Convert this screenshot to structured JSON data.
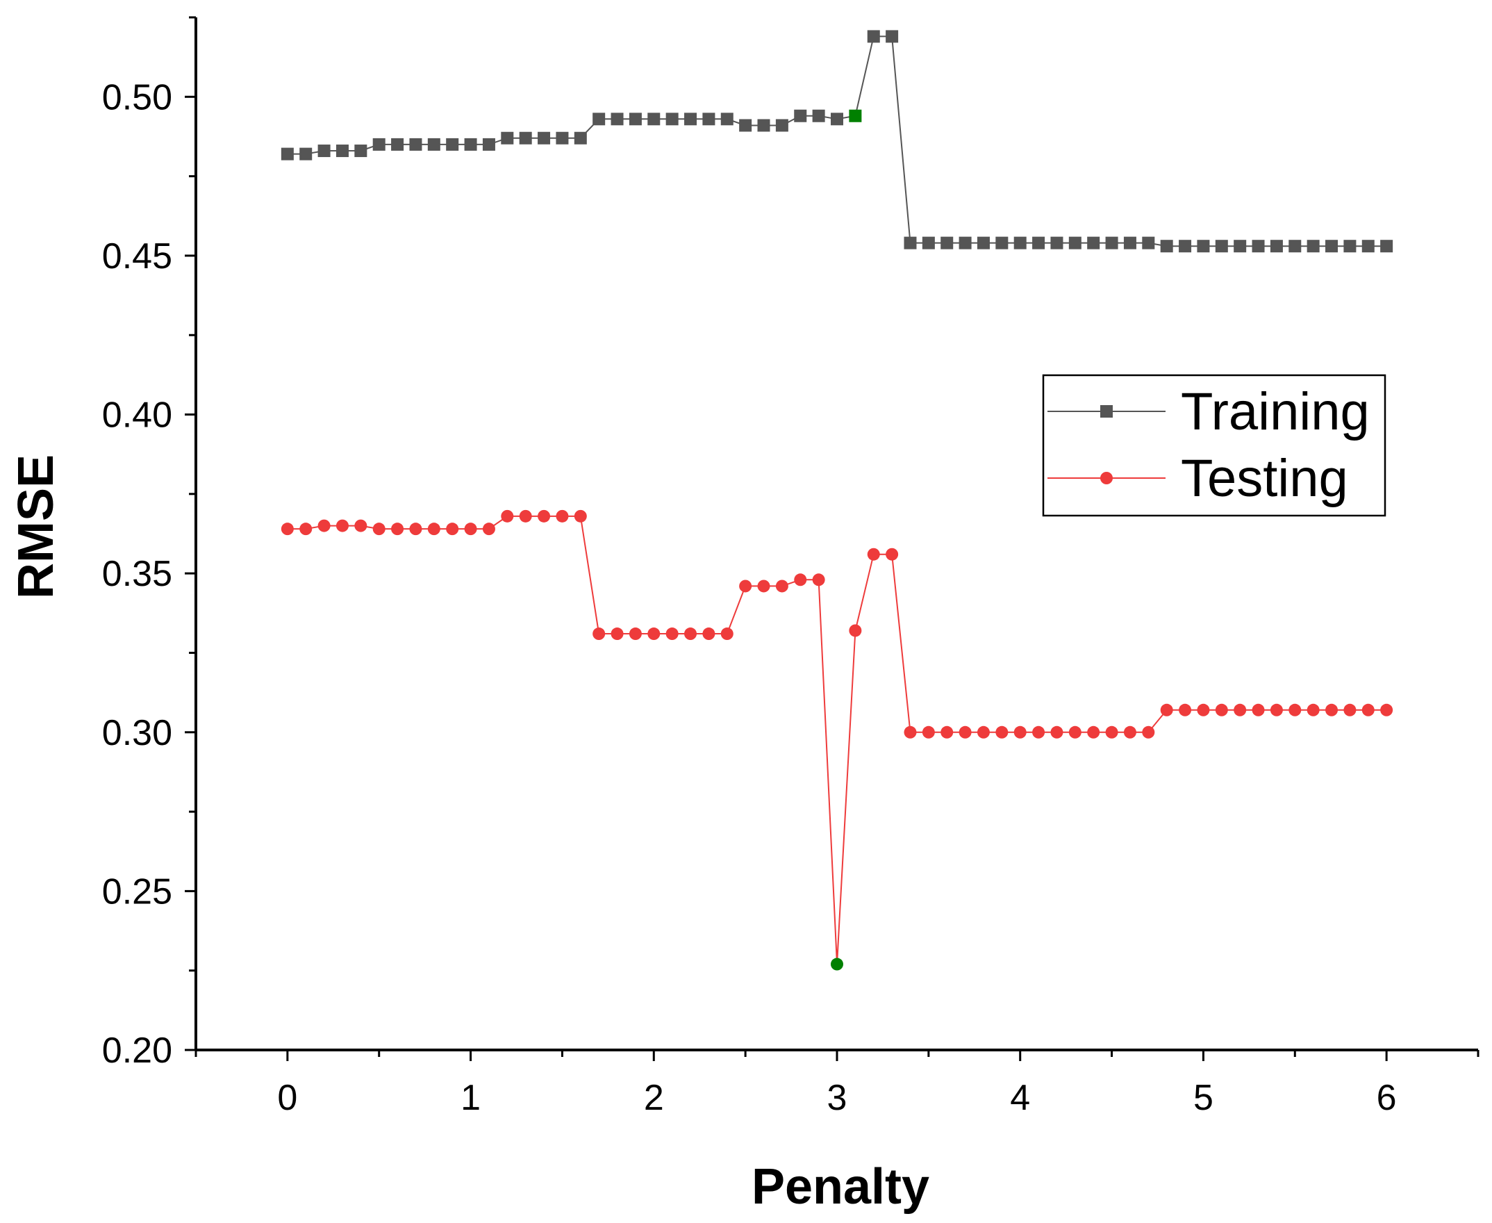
{
  "chart_data": {
    "type": "line",
    "title": "",
    "xlabel": "Penalty",
    "ylabel": "RMSE",
    "xlim": [
      -0.5,
      6.5
    ],
    "ylim": [
      0.2,
      0.525
    ],
    "xticks": [
      "0",
      "1",
      "2",
      "3",
      "4",
      "5",
      "6"
    ],
    "yticks": [
      "0.20",
      "0.25",
      "0.30",
      "0.35",
      "0.40",
      "0.45",
      "0.50"
    ],
    "legend_position": "right-middle",
    "grid": false,
    "series": [
      {
        "name": "Training",
        "color": "#555555",
        "marker": "square",
        "x": [
          0,
          0.1,
          0.2,
          0.3,
          0.4,
          0.5,
          0.6,
          0.7,
          0.8,
          0.9,
          1.0,
          1.1,
          1.2,
          1.3,
          1.4,
          1.5,
          1.6,
          1.7,
          1.8,
          1.9,
          2.0,
          2.1,
          2.2,
          2.3,
          2.4,
          2.5,
          2.6,
          2.7,
          2.8,
          2.9,
          3.0,
          3.1,
          3.2,
          3.3,
          3.4,
          3.5,
          3.6,
          3.7,
          3.8,
          3.9,
          4.0,
          4.1,
          4.2,
          4.3,
          4.4,
          4.5,
          4.6,
          4.7,
          4.8,
          4.9,
          5.0,
          5.1,
          5.2,
          5.3,
          5.4,
          5.5,
          5.6,
          5.7,
          5.8,
          5.9,
          6.0
        ],
        "values": [
          0.482,
          0.482,
          0.483,
          0.483,
          0.483,
          0.485,
          0.485,
          0.485,
          0.485,
          0.485,
          0.485,
          0.485,
          0.487,
          0.487,
          0.487,
          0.487,
          0.487,
          0.493,
          0.493,
          0.493,
          0.493,
          0.493,
          0.493,
          0.493,
          0.493,
          0.491,
          0.491,
          0.491,
          0.494,
          0.494,
          0.493,
          0.494,
          0.519,
          0.519,
          0.454,
          0.454,
          0.454,
          0.454,
          0.454,
          0.454,
          0.454,
          0.454,
          0.454,
          0.454,
          0.454,
          0.454,
          0.454,
          0.454,
          0.453,
          0.453,
          0.453,
          0.453,
          0.453,
          0.453,
          0.453,
          0.453,
          0.453,
          0.453,
          0.453,
          0.453,
          0.453
        ],
        "highlight": {
          "x": 3.1,
          "value": 0.494,
          "color": "#008000"
        }
      },
      {
        "name": "Testing",
        "color": "#ee3b3b",
        "marker": "circle",
        "x": [
          0,
          0.1,
          0.2,
          0.3,
          0.4,
          0.5,
          0.6,
          0.7,
          0.8,
          0.9,
          1.0,
          1.1,
          1.2,
          1.3,
          1.4,
          1.5,
          1.6,
          1.7,
          1.8,
          1.9,
          2.0,
          2.1,
          2.2,
          2.3,
          2.4,
          2.5,
          2.6,
          2.7,
          2.8,
          2.9,
          3.0,
          3.1,
          3.2,
          3.3,
          3.4,
          3.5,
          3.6,
          3.7,
          3.8,
          3.9,
          4.0,
          4.1,
          4.2,
          4.3,
          4.4,
          4.5,
          4.6,
          4.7,
          4.8,
          4.9,
          5.0,
          5.1,
          5.2,
          5.3,
          5.4,
          5.5,
          5.6,
          5.7,
          5.8,
          5.9,
          6.0
        ],
        "values": [
          0.364,
          0.364,
          0.365,
          0.365,
          0.365,
          0.364,
          0.364,
          0.364,
          0.364,
          0.364,
          0.364,
          0.364,
          0.368,
          0.368,
          0.368,
          0.368,
          0.368,
          0.331,
          0.331,
          0.331,
          0.331,
          0.331,
          0.331,
          0.331,
          0.331,
          0.346,
          0.346,
          0.346,
          0.348,
          0.348,
          0.227,
          0.332,
          0.356,
          0.356,
          0.3,
          0.3,
          0.3,
          0.3,
          0.3,
          0.3,
          0.3,
          0.3,
          0.3,
          0.3,
          0.3,
          0.3,
          0.3,
          0.3,
          0.307,
          0.307,
          0.307,
          0.307,
          0.307,
          0.307,
          0.307,
          0.307,
          0.307,
          0.307,
          0.307,
          0.307,
          0.307
        ],
        "highlight": {
          "x": 3.0,
          "value": 0.227,
          "color": "#008000"
        }
      }
    ]
  }
}
